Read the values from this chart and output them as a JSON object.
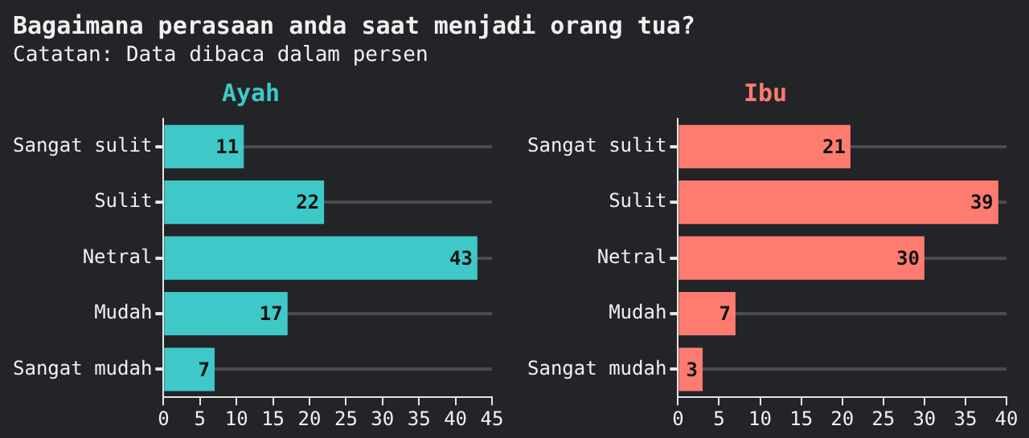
{
  "chart_data": [
    {
      "type": "bar",
      "orientation": "horizontal",
      "title": "Ayah",
      "annotations": [
        "Bagaimana perasaan anda saat menjadi orang tua?",
        "Catatan: Data dibaca dalam persen"
      ],
      "categories": [
        "Sangat sulit",
        "Sulit",
        "Netral",
        "Mudah",
        "Sangat mudah"
      ],
      "series": [
        {
          "color": "#3ec8c8",
          "values": [
            11,
            22,
            43,
            17,
            7
          ]
        }
      ],
      "xlim": [
        0,
        45
      ],
      "xticks": [
        0,
        5,
        10,
        15,
        20,
        25,
        30,
        35,
        40,
        45
      ],
      "grid": "y",
      "data_labels": true
    },
    {
      "type": "bar",
      "orientation": "horizontal",
      "title": "Ibu",
      "categories": [
        "Sangat sulit",
        "Sulit",
        "Netral",
        "Mudah",
        "Sangat mudah"
      ],
      "series": [
        {
          "color": "#fe7b70",
          "values": [
            21,
            39,
            30,
            7,
            3
          ]
        }
      ],
      "xlim": [
        0,
        40
      ],
      "xticks": [
        0,
        5,
        10,
        15,
        20,
        25,
        30,
        35,
        40
      ],
      "grid": "y",
      "data_labels": true
    }
  ]
}
